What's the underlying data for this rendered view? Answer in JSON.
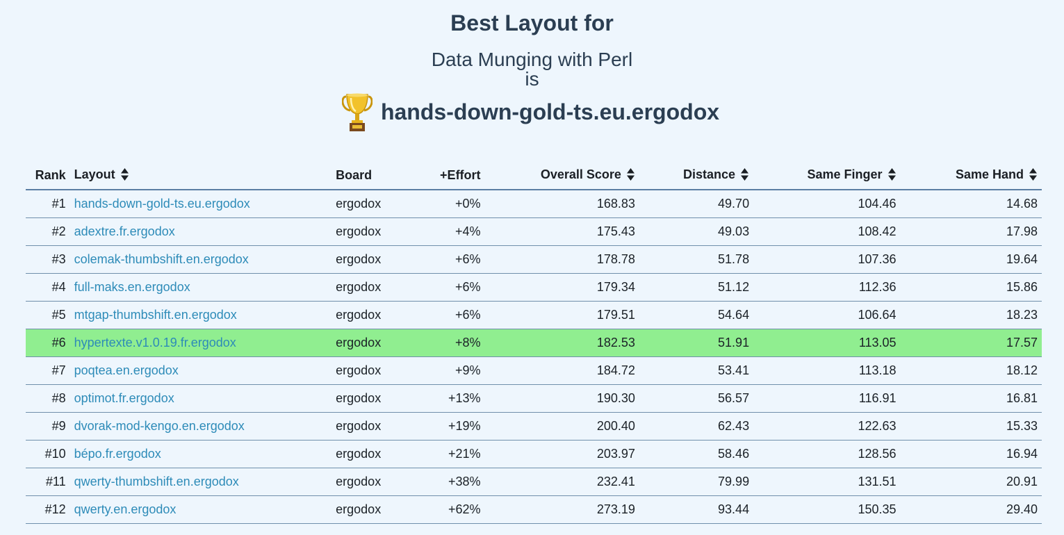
{
  "header": {
    "title": "Best Layout for",
    "subtitle": "Data Munging with Perl",
    "connector": "is",
    "winner_icon": "trophy-icon",
    "winner": "hands-down-gold-ts.eu.ergodox"
  },
  "table": {
    "columns": {
      "rank": "Rank",
      "layout": "Layout",
      "board": "Board",
      "effort": "+Effort",
      "score": "Overall Score",
      "distance": "Distance",
      "same_finger": "Same Finger",
      "same_hand": "Same Hand"
    },
    "sort_icon": "sort-updown-icon",
    "highlight_color": "#90ee90",
    "link_color": "#2d8bb8",
    "rows": [
      {
        "rank": "#1",
        "layout": "hands-down-gold-ts.eu.ergodox",
        "board": "ergodox",
        "effort": "+0%",
        "score": "168.83",
        "distance": "49.70",
        "same_finger": "104.46",
        "same_hand": "14.68"
      },
      {
        "rank": "#2",
        "layout": "adextre.fr.ergodox",
        "board": "ergodox",
        "effort": "+4%",
        "score": "175.43",
        "distance": "49.03",
        "same_finger": "108.42",
        "same_hand": "17.98"
      },
      {
        "rank": "#3",
        "layout": "colemak-thumbshift.en.ergodox",
        "board": "ergodox",
        "effort": "+6%",
        "score": "178.78",
        "distance": "51.78",
        "same_finger": "107.36",
        "same_hand": "19.64"
      },
      {
        "rank": "#4",
        "layout": "full-maks.en.ergodox",
        "board": "ergodox",
        "effort": "+6%",
        "score": "179.34",
        "distance": "51.12",
        "same_finger": "112.36",
        "same_hand": "15.86"
      },
      {
        "rank": "#5",
        "layout": "mtgap-thumbshift.en.ergodox",
        "board": "ergodox",
        "effort": "+6%",
        "score": "179.51",
        "distance": "54.64",
        "same_finger": "106.64",
        "same_hand": "18.23"
      },
      {
        "rank": "#6",
        "layout": "hypertexte.v1.0.19.fr.ergodox",
        "board": "ergodox",
        "effort": "+8%",
        "score": "182.53",
        "distance": "51.91",
        "same_finger": "113.05",
        "same_hand": "17.57",
        "highlight": true
      },
      {
        "rank": "#7",
        "layout": "poqtea.en.ergodox",
        "board": "ergodox",
        "effort": "+9%",
        "score": "184.72",
        "distance": "53.41",
        "same_finger": "113.18",
        "same_hand": "18.12"
      },
      {
        "rank": "#8",
        "layout": "optimot.fr.ergodox",
        "board": "ergodox",
        "effort": "+13%",
        "score": "190.30",
        "distance": "56.57",
        "same_finger": "116.91",
        "same_hand": "16.81"
      },
      {
        "rank": "#9",
        "layout": "dvorak-mod-kengo.en.ergodox",
        "board": "ergodox",
        "effort": "+19%",
        "score": "200.40",
        "distance": "62.43",
        "same_finger": "122.63",
        "same_hand": "15.33"
      },
      {
        "rank": "#10",
        "layout": "bépo.fr.ergodox",
        "board": "ergodox",
        "effort": "+21%",
        "score": "203.97",
        "distance": "58.46",
        "same_finger": "128.56",
        "same_hand": "16.94"
      },
      {
        "rank": "#11",
        "layout": "qwerty-thumbshift.en.ergodox",
        "board": "ergodox",
        "effort": "+38%",
        "score": "232.41",
        "distance": "79.99",
        "same_finger": "131.51",
        "same_hand": "20.91"
      },
      {
        "rank": "#12",
        "layout": "qwerty.en.ergodox",
        "board": "ergodox",
        "effort": "+62%",
        "score": "273.19",
        "distance": "93.44",
        "same_finger": "150.35",
        "same_hand": "29.40"
      }
    ]
  }
}
